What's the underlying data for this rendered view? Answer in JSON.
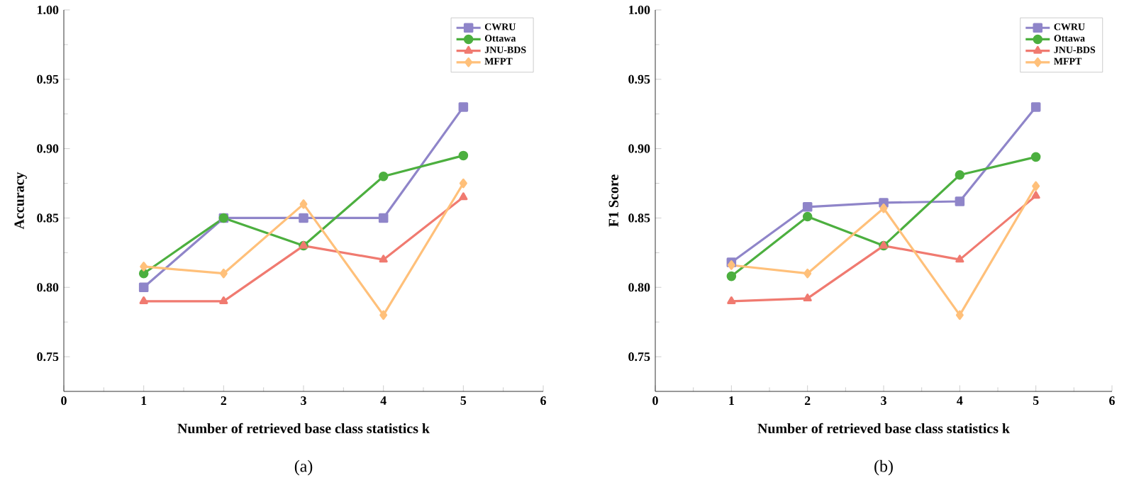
{
  "chart_data": [
    {
      "type": "line",
      "xlabel": "Number of retrieved base class statistics k",
      "ylabel": "Accuracy",
      "annotations": [
        "(a)"
      ],
      "xlim": [
        0,
        6
      ],
      "xticks": [
        0,
        1,
        2,
        3,
        4,
        5,
        6
      ],
      "ylim": [
        0.725,
        1.0
      ],
      "yticks": [
        0.75,
        {
          "value": 0.8,
          "label": "0.80"
        },
        0.85,
        {
          "value": 0.9,
          "label": "0.90"
        },
        0.95,
        {
          "value": 1.0,
          "label": "1.00"
        }
      ],
      "grid": false,
      "legend": "top right",
      "line_style": "solid",
      "x": [
        1,
        2,
        3,
        4,
        5
      ],
      "series": [
        {
          "name": "CWRU",
          "color": "#8f85c9",
          "marker": "square",
          "values": [
            0.8,
            0.85,
            0.85,
            0.85,
            0.93
          ]
        },
        {
          "name": "Ottawa",
          "color": "#4caf3f",
          "marker": "circle",
          "values": [
            0.81,
            0.85,
            0.83,
            0.88,
            0.895
          ]
        },
        {
          "name": "JNU-BDS",
          "color": "#f07a70",
          "marker": "triangle",
          "values": [
            0.79,
            0.79,
            0.83,
            0.82,
            0.865
          ]
        },
        {
          "name": "MFPT",
          "color": "#ffc07a",
          "marker": "diamond",
          "values": [
            0.815,
            0.81,
            0.86,
            0.78,
            0.875
          ]
        }
      ]
    },
    {
      "type": "line",
      "xlabel": "Number of retrieved base class statistics k",
      "ylabel": "F1 Score",
      "annotations": [
        "(b)"
      ],
      "xlim": [
        0,
        6
      ],
      "xticks": [
        0,
        1,
        2,
        3,
        4,
        5,
        6
      ],
      "ylim": [
        0.725,
        1.0
      ],
      "yticks": [
        0.75,
        {
          "value": 0.8,
          "label": "0.80"
        },
        0.85,
        {
          "value": 0.9,
          "label": "0.90"
        },
        0.95,
        {
          "value": 1.0,
          "label": "1.00"
        }
      ],
      "grid": false,
      "legend": "top right",
      "line_style": "solid",
      "x": [
        1,
        2,
        3,
        4,
        5
      ],
      "series": [
        {
          "name": "CWRU",
          "color": "#8f85c9",
          "marker": "square",
          "values": [
            0.818,
            0.858,
            0.861,
            0.862,
            0.93
          ]
        },
        {
          "name": "Ottawa",
          "color": "#4caf3f",
          "marker": "circle",
          "values": [
            0.808,
            0.851,
            0.83,
            0.881,
            0.894
          ]
        },
        {
          "name": "JNU-BDS",
          "color": "#f07a70",
          "marker": "triangle",
          "values": [
            0.79,
            0.792,
            0.83,
            0.82,
            0.866
          ]
        },
        {
          "name": "MFPT",
          "color": "#ffc07a",
          "marker": "diamond",
          "values": [
            0.816,
            0.81,
            0.857,
            0.78,
            0.873
          ]
        }
      ]
    }
  ]
}
